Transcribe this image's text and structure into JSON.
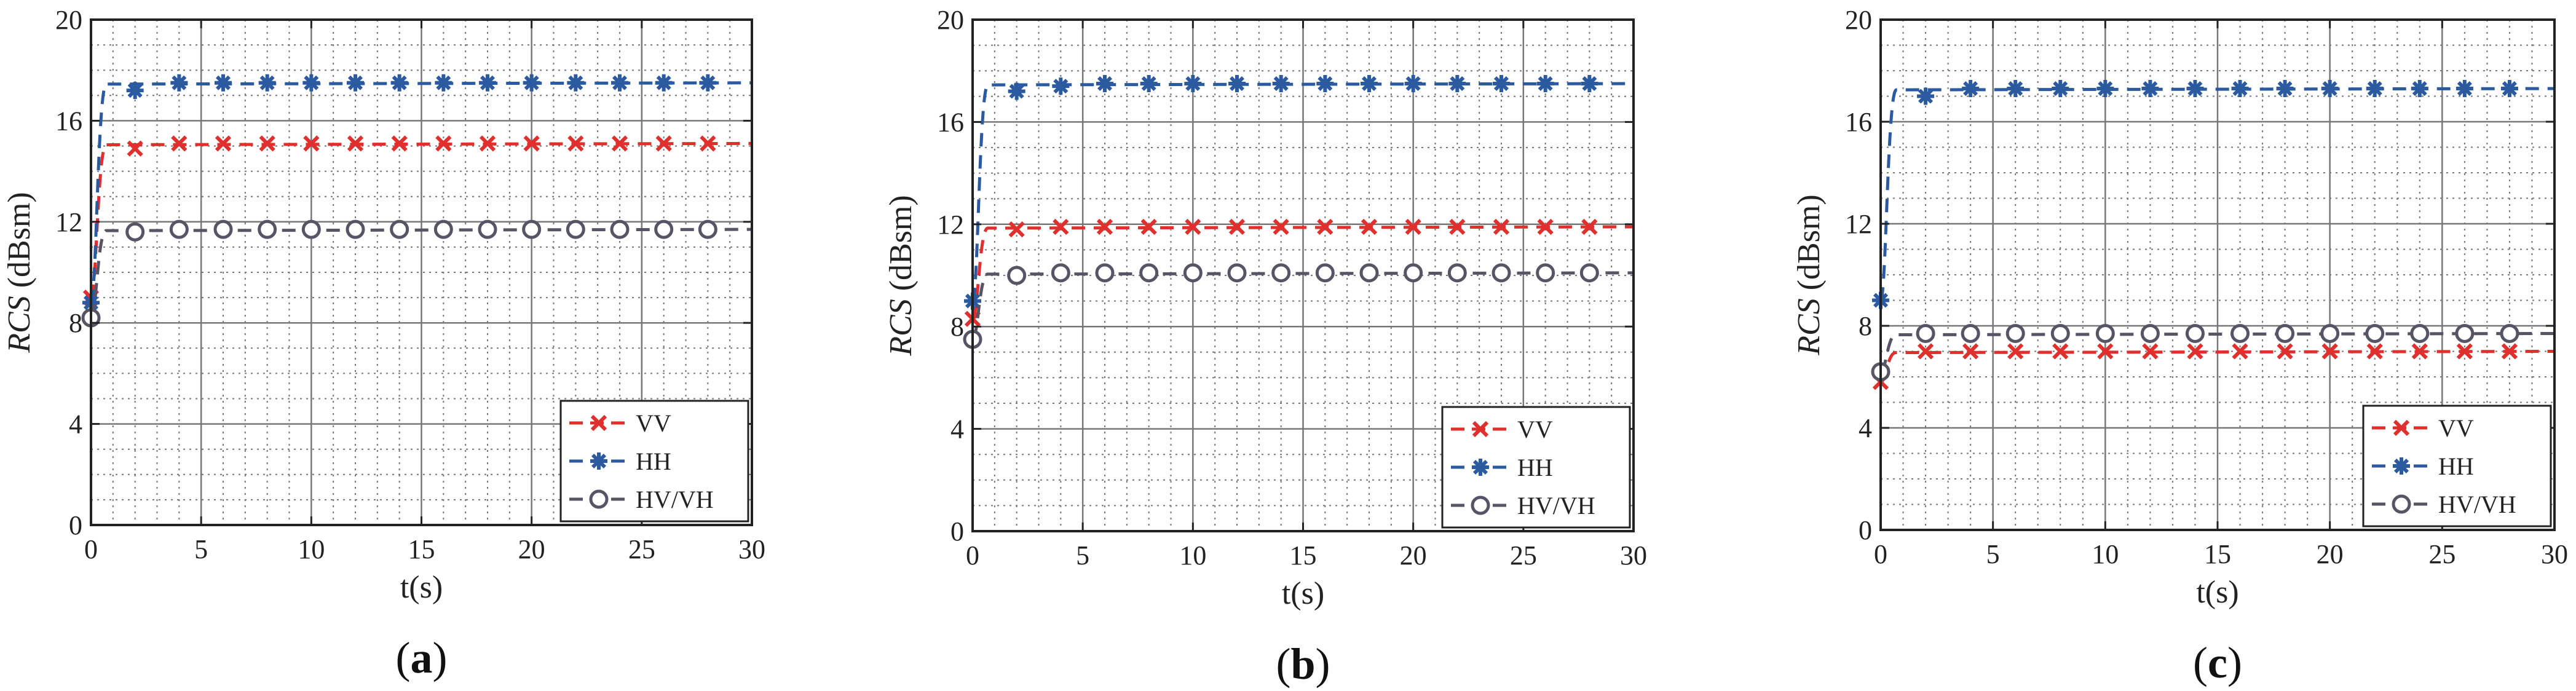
{
  "colors": {
    "VV": "#e0302d",
    "HH": "#2b5aa0",
    "HVVH": "#555566",
    "grid": "#777777",
    "axis": "#222222"
  },
  "chart_data": [
    {
      "type": "line",
      "panel_label": "a",
      "xlabel": "t(s)",
      "ylabel_italic": "RCS",
      "ylabel_unit": " (dBsm)",
      "xlim": [
        0,
        30
      ],
      "ylim": [
        0,
        20
      ],
      "xticks": [
        0,
        5,
        10,
        15,
        20,
        25,
        30
      ],
      "yticks": [
        0,
        4,
        8,
        12,
        16,
        20
      ],
      "legend_position": "bottom-right",
      "series": [
        {
          "name": "VV",
          "marker": "x",
          "x": [
            0,
            2,
            4,
            6,
            8,
            10,
            12,
            14,
            16,
            18,
            20,
            22,
            24,
            26,
            28
          ],
          "values": [
            9.0,
            14.9,
            15.1,
            15.1,
            15.1,
            15.1,
            15.1,
            15.1,
            15.1,
            15.1,
            15.1,
            15.1,
            15.1,
            15.1,
            15.1
          ]
        },
        {
          "name": "HH",
          "marker": "star",
          "x": [
            0,
            2,
            4,
            6,
            8,
            10,
            12,
            14,
            16,
            18,
            20,
            22,
            24,
            26,
            28
          ],
          "values": [
            8.8,
            17.2,
            17.5,
            17.5,
            17.5,
            17.5,
            17.5,
            17.5,
            17.5,
            17.5,
            17.5,
            17.5,
            17.5,
            17.5,
            17.5
          ]
        },
        {
          "name": "HV/VH",
          "marker": "circle",
          "x": [
            0,
            2,
            4,
            6,
            8,
            10,
            12,
            14,
            16,
            18,
            20,
            22,
            24,
            26,
            28
          ],
          "values": [
            8.2,
            11.6,
            11.7,
            11.7,
            11.7,
            11.7,
            11.7,
            11.7,
            11.7,
            11.7,
            11.7,
            11.7,
            11.7,
            11.7,
            11.7
          ]
        }
      ]
    },
    {
      "type": "line",
      "panel_label": "b",
      "xlabel": "t(s)",
      "ylabel_italic": "RCS",
      "ylabel_unit": " (dBsm)",
      "xlim": [
        0,
        30
      ],
      "ylim": [
        0,
        20
      ],
      "xticks": [
        0,
        5,
        10,
        15,
        20,
        25,
        30
      ],
      "yticks": [
        0,
        4,
        8,
        12,
        16,
        20
      ],
      "legend_position": "bottom-right",
      "series": [
        {
          "name": "VV",
          "marker": "x",
          "x": [
            0,
            2,
            4,
            6,
            8,
            10,
            12,
            14,
            16,
            18,
            20,
            22,
            24,
            26,
            28
          ],
          "values": [
            8.3,
            11.8,
            11.9,
            11.9,
            11.9,
            11.9,
            11.9,
            11.9,
            11.9,
            11.9,
            11.9,
            11.9,
            11.9,
            11.9,
            11.9
          ]
        },
        {
          "name": "HH",
          "marker": "star",
          "x": [
            0,
            2,
            4,
            6,
            8,
            10,
            12,
            14,
            16,
            18,
            20,
            22,
            24,
            26,
            28
          ],
          "values": [
            9.0,
            17.2,
            17.4,
            17.5,
            17.5,
            17.5,
            17.5,
            17.5,
            17.5,
            17.5,
            17.5,
            17.5,
            17.5,
            17.5,
            17.5
          ]
        },
        {
          "name": "HV/VH",
          "marker": "circle",
          "x": [
            0,
            2,
            4,
            6,
            8,
            10,
            12,
            14,
            16,
            18,
            20,
            22,
            24,
            26,
            28
          ],
          "values": [
            7.5,
            10.0,
            10.1,
            10.1,
            10.1,
            10.1,
            10.1,
            10.1,
            10.1,
            10.1,
            10.1,
            10.1,
            10.1,
            10.1,
            10.1
          ]
        }
      ]
    },
    {
      "type": "line",
      "panel_label": "c",
      "xlabel": "t(s)",
      "ylabel_italic": "RCS",
      "ylabel_unit": " (dBsm)",
      "xlim": [
        0,
        30
      ],
      "ylim": [
        0,
        20
      ],
      "xticks": [
        0,
        5,
        10,
        15,
        20,
        25,
        30
      ],
      "yticks": [
        0,
        4,
        8,
        12,
        16,
        20
      ],
      "legend_position": "bottom-right",
      "series": [
        {
          "name": "VV",
          "marker": "x",
          "x": [
            0,
            2,
            4,
            6,
            8,
            10,
            12,
            14,
            16,
            18,
            20,
            22,
            24,
            26,
            28
          ],
          "values": [
            5.8,
            7.0,
            7.0,
            7.0,
            7.0,
            7.0,
            7.0,
            7.0,
            7.0,
            7.0,
            7.0,
            7.0,
            7.0,
            7.0,
            7.0
          ]
        },
        {
          "name": "HH",
          "marker": "star",
          "x": [
            0,
            2,
            4,
            6,
            8,
            10,
            12,
            14,
            16,
            18,
            20,
            22,
            24,
            26,
            28
          ],
          "values": [
            9.0,
            17.0,
            17.3,
            17.3,
            17.3,
            17.3,
            17.3,
            17.3,
            17.3,
            17.3,
            17.3,
            17.3,
            17.3,
            17.3,
            17.3
          ]
        },
        {
          "name": "HV/VH",
          "marker": "circle",
          "x": [
            0,
            2,
            4,
            6,
            8,
            10,
            12,
            14,
            16,
            18,
            20,
            22,
            24,
            26,
            28
          ],
          "values": [
            6.2,
            7.7,
            7.7,
            7.7,
            7.7,
            7.7,
            7.7,
            7.7,
            7.7,
            7.7,
            7.7,
            7.7,
            7.7,
            7.7,
            7.7
          ]
        }
      ]
    }
  ]
}
